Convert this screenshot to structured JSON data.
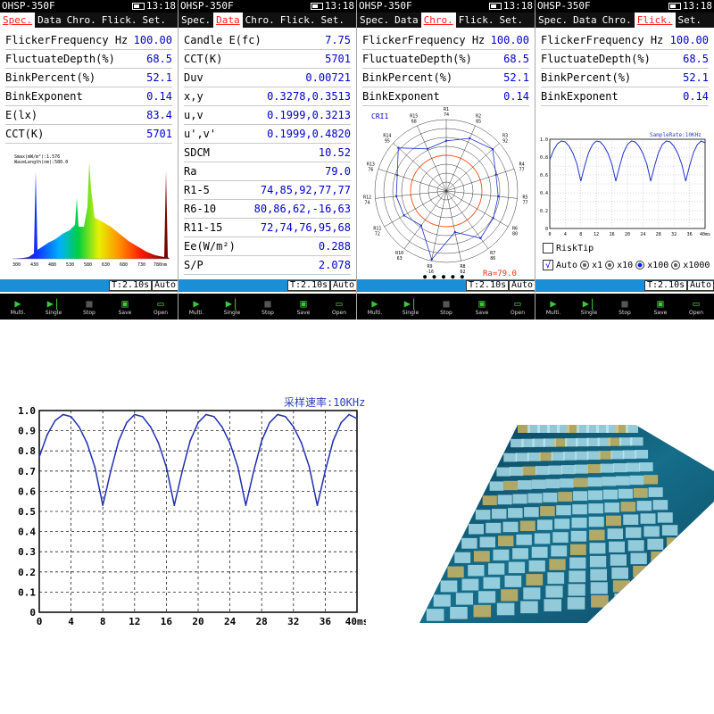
{
  "device": {
    "model": "OHSP-350F",
    "time": "13:18"
  },
  "tabs": [
    "Spec.",
    "Data",
    "Chro.",
    "Flick.",
    "Set."
  ],
  "spec": {
    "rows": [
      {
        "label": "FlickerFrequency Hz",
        "value": "100.00"
      },
      {
        "label": "FluctuateDepth(%)",
        "value": "68.5"
      },
      {
        "label": "BinkPercent(%)",
        "value": "52.1"
      },
      {
        "label": "BinkExponent",
        "value": "0.14"
      },
      {
        "label": "E(lx)",
        "value": "83.4"
      },
      {
        "label": "CCT(K)",
        "value": "5701"
      }
    ],
    "spectrum_note1": "Smax(mW/m²):1.576",
    "spectrum_note2": "WaveLength(nm):580.0",
    "x_ticks": [
      "300",
      "430",
      "480",
      "530",
      "580",
      "630",
      "680",
      "730",
      "780nm"
    ]
  },
  "data": {
    "rows": [
      {
        "label": "Candle E(fc)",
        "value": "7.75"
      },
      {
        "label": "CCT(K)",
        "value": "5701"
      },
      {
        "label": "Duv",
        "value": "0.00721"
      },
      {
        "label": "x,y",
        "value": "0.3278,0.3513"
      },
      {
        "label": "u,v",
        "value": "0.1999,0.3213"
      },
      {
        "label": "u',v'",
        "value": "0.1999,0.4820"
      },
      {
        "label": "SDCM",
        "value": "10.52"
      },
      {
        "label": "Ra",
        "value": "79.0"
      },
      {
        "label": "R1-5",
        "value": "74,85,92,77,77"
      },
      {
        "label": "R6-10",
        "value": "80,86,62,-16,63"
      },
      {
        "label": "R11-15",
        "value": "72,74,76,95,68"
      },
      {
        "label": "Ee(W/m²)",
        "value": "0.288"
      },
      {
        "label": "S/P",
        "value": "2.078"
      }
    ]
  },
  "chro": {
    "rows": [
      {
        "label": "FlickerFrequency Hz",
        "value": "100.00"
      },
      {
        "label": "FluctuateDepth(%)",
        "value": "68.5"
      },
      {
        "label": "BinkPercent(%)",
        "value": "52.1"
      },
      {
        "label": "BinkExponent",
        "value": "0.14"
      }
    ],
    "cri_label": "CRI1",
    "ra_label": "Ra=79.0",
    "points": [
      {
        "name": "R1",
        "val": 74
      },
      {
        "name": "R2",
        "val": 85
      },
      {
        "name": "R3",
        "val": 92
      },
      {
        "name": "R4",
        "val": 77
      },
      {
        "name": "R5",
        "val": 77
      },
      {
        "name": "R6",
        "val": 80
      },
      {
        "name": "R7",
        "val": 86
      },
      {
        "name": "R8",
        "val": 62
      },
      {
        "name": "R9",
        "val": -16
      },
      {
        "name": "R10",
        "val": 63
      },
      {
        "name": "R11",
        "val": 72
      },
      {
        "name": "R12",
        "val": 74
      },
      {
        "name": "R13",
        "val": 76
      },
      {
        "name": "R14",
        "val": 95
      },
      {
        "name": "R15",
        "val": 68
      }
    ]
  },
  "flick": {
    "rows": [
      {
        "label": "FlickerFrequency Hz",
        "value": "100.00"
      },
      {
        "label": "FluctuateDepth(%)",
        "value": "68.5"
      },
      {
        "label": "BinkPercent(%)",
        "value": "52.1"
      },
      {
        "label": "BinkExponent",
        "value": "0.14"
      }
    ],
    "sample_rate": "SampleRate:10KHz",
    "risk_tip": "RiskTip",
    "auto_label": "Auto",
    "x_options": [
      "x1",
      "x10",
      "x100",
      "x1000"
    ],
    "selected_option": "x100"
  },
  "status": {
    "time_box": "T:2.10s",
    "auto_box": "Auto"
  },
  "toolbar": [
    {
      "label": "Multi.",
      "icon": "play-icon"
    },
    {
      "label": "Single",
      "icon": "step-icon"
    },
    {
      "label": "Stop",
      "icon": "stop-icon"
    },
    {
      "label": "Save",
      "icon": "save-icon"
    },
    {
      "label": "Open",
      "icon": "folder-icon"
    }
  ],
  "chart_data": {
    "type": "line",
    "title": "采样速率:10KHz",
    "x_ticks": [
      "0",
      "4",
      "8",
      "12",
      "16",
      "20",
      "24",
      "28",
      "32",
      "36",
      "40ms"
    ],
    "y_ticks": [
      "0",
      "0.1",
      "0.2",
      "0.3",
      "0.4",
      "0.5",
      "0.6",
      "0.7",
      "0.8",
      "0.9",
      "1.0"
    ],
    "xlim": [
      0,
      40
    ],
    "ylim": [
      0,
      1.0
    ],
    "x": [
      0,
      1,
      2,
      3,
      4,
      5,
      6,
      7,
      8,
      9,
      10,
      11,
      12,
      13,
      14,
      15,
      16,
      17,
      18,
      19,
      20,
      21,
      22,
      23,
      24,
      25,
      26,
      27,
      28,
      29,
      30,
      31,
      32,
      33,
      34,
      35,
      36,
      37,
      38,
      39,
      40
    ],
    "y": [
      0.77,
      0.88,
      0.95,
      0.98,
      0.97,
      0.92,
      0.84,
      0.72,
      0.53,
      0.7,
      0.85,
      0.94,
      0.98,
      0.97,
      0.92,
      0.84,
      0.72,
      0.53,
      0.7,
      0.85,
      0.94,
      0.98,
      0.97,
      0.92,
      0.84,
      0.72,
      0.53,
      0.7,
      0.85,
      0.94,
      0.98,
      0.97,
      0.92,
      0.84,
      0.72,
      0.53,
      0.7,
      0.85,
      0.94,
      0.98,
      0.96
    ],
    "grid": true
  }
}
